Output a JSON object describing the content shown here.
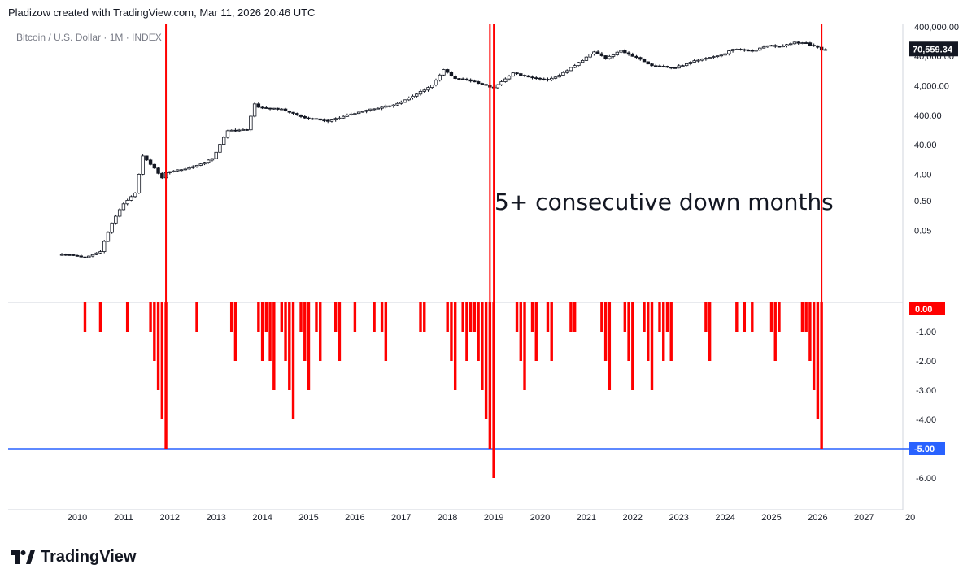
{
  "header": {
    "text": "Pladizow created with TradingView.com, Mar 11, 2026 20:46 UTC"
  },
  "symbol": {
    "label": "Bitcoin / U.S. Dollar · 1M · INDEX"
  },
  "annotation": {
    "text": "5+ consecutive down months"
  },
  "brand": {
    "name": "TradingView"
  },
  "colors": {
    "signal_line": "#ff0000",
    "histogram": "#ff0000",
    "threshold_line": "#2962ff",
    "price_badge": "#131722",
    "zero_badge": "#ff0000",
    "threshold_badge": "#2962ff"
  },
  "chart_data": [
    {
      "type": "candlestick",
      "title": "Bitcoin / U.S. Dollar · 1M · INDEX",
      "scale": "log",
      "y_ticks": [
        "0.05",
        "0.50",
        "4.00",
        "40.00",
        "400.00",
        "4,000.00",
        "40,000.00",
        "400,000.00"
      ],
      "last_price_label": "70,559.34",
      "x_ticks": [
        "2010",
        "2011",
        "2012",
        "2013",
        "2014",
        "2015",
        "2016",
        "2017",
        "2018",
        "2019",
        "2020",
        "2021",
        "2022",
        "2023",
        "2024",
        "2025",
        "2026",
        "2027",
        "20"
      ],
      "close_path": [
        [
          "2009-09",
          0.008
        ],
        [
          "2010-03",
          0.006
        ],
        [
          "2010-07",
          0.01
        ],
        [
          "2010-10",
          0.09
        ],
        [
          "2011-01",
          0.4
        ],
        [
          "2011-04",
          0.9
        ],
        [
          "2011-06",
          17
        ],
        [
          "2011-08",
          9
        ],
        [
          "2011-11",
          3
        ],
        [
          "2011-12",
          4.7
        ],
        [
          "2012-06",
          6.5
        ],
        [
          "2012-12",
          13.5
        ],
        [
          "2013-04",
          120
        ],
        [
          "2013-09",
          130
        ],
        [
          "2013-11",
          1000
        ],
        [
          "2013-12",
          750
        ],
        [
          "2014-06",
          630
        ],
        [
          "2014-12",
          320
        ],
        [
          "2015-06",
          260
        ],
        [
          "2015-12",
          430
        ],
        [
          "2016-06",
          670
        ],
        [
          "2016-12",
          960
        ],
        [
          "2017-06",
          2500
        ],
        [
          "2017-09",
          4300
        ],
        [
          "2017-12",
          14000
        ],
        [
          "2018-03",
          7000
        ],
        [
          "2018-06",
          6400
        ],
        [
          "2018-12",
          3700
        ],
        [
          "2019-01",
          3450
        ],
        [
          "2019-06",
          10800
        ],
        [
          "2019-12",
          7200
        ],
        [
          "2020-03",
          6400
        ],
        [
          "2020-06",
          9100
        ],
        [
          "2020-12",
          29000
        ],
        [
          "2021-03",
          58800
        ],
        [
          "2021-06",
          35000
        ],
        [
          "2021-10",
          61300
        ],
        [
          "2021-12",
          46300
        ],
        [
          "2022-06",
          19800
        ],
        [
          "2022-12",
          16500
        ],
        [
          "2023-06",
          30500
        ],
        [
          "2023-12",
          42300
        ],
        [
          "2024-03",
          71300
        ],
        [
          "2024-08",
          59000
        ],
        [
          "2024-12",
          93400
        ],
        [
          "2025-03",
          82500
        ],
        [
          "2025-07",
          115800
        ],
        [
          "2025-09",
          114000
        ],
        [
          "2025-10",
          109600
        ],
        [
          "2025-12",
          87500
        ],
        [
          "2026-01",
          78600
        ],
        [
          "2026-02",
          66000
        ],
        [
          "2026-03",
          70559
        ]
      ]
    },
    {
      "type": "bar",
      "title": "",
      "ylim": [
        -6.5,
        0
      ],
      "y_ticks": [
        "0.00",
        "-1.00",
        "-2.00",
        "-3.00",
        "-4.00",
        "-5.00",
        "-6.00"
      ],
      "zero_label": "0.00",
      "threshold": -5,
      "threshold_label": "-5.00",
      "series": [
        {
          "values": [
            [
              "2010-03",
              -1
            ],
            [
              "2010-07",
              -1
            ],
            [
              "2011-02",
              -1
            ],
            [
              "2011-08",
              -1
            ],
            [
              "2011-09",
              -2
            ],
            [
              "2011-10",
              -3
            ],
            [
              "2011-11",
              -4
            ],
            [
              "2011-12",
              -5
            ],
            [
              "2012-08",
              -1
            ],
            [
              "2013-05",
              -1
            ],
            [
              "2013-06",
              -2
            ],
            [
              "2013-12",
              -1
            ],
            [
              "2014-01",
              -2
            ],
            [
              "2014-02",
              -1
            ],
            [
              "2014-03",
              -2
            ],
            [
              "2014-04",
              -3
            ],
            [
              "2014-06",
              -1
            ],
            [
              "2014-07",
              -2
            ],
            [
              "2014-08",
              -3
            ],
            [
              "2014-09",
              -4
            ],
            [
              "2014-11",
              -1
            ],
            [
              "2014-12",
              -2
            ],
            [
              "2015-01",
              -3
            ],
            [
              "2015-03",
              -1
            ],
            [
              "2015-04",
              -2
            ],
            [
              "2015-08",
              -1
            ],
            [
              "2015-09",
              -2
            ],
            [
              "2016-01",
              -1
            ],
            [
              "2016-06",
              -1
            ],
            [
              "2016-08",
              -1
            ],
            [
              "2016-09",
              -2
            ],
            [
              "2017-06",
              -1
            ],
            [
              "2017-07",
              -1
            ],
            [
              "2018-01",
              -1
            ],
            [
              "2018-02",
              -2
            ],
            [
              "2018-03",
              -3
            ],
            [
              "2018-05",
              -1
            ],
            [
              "2018-06",
              -2
            ],
            [
              "2018-07",
              -1
            ],
            [
              "2018-08",
              -1
            ],
            [
              "2018-09",
              -2
            ],
            [
              "2018-10",
              -3
            ],
            [
              "2018-11",
              -4
            ],
            [
              "2018-12",
              -5
            ],
            [
              "2019-01",
              -6
            ],
            [
              "2019-07",
              -1
            ],
            [
              "2019-08",
              -2
            ],
            [
              "2019-09",
              -3
            ],
            [
              "2019-11",
              -1
            ],
            [
              "2019-12",
              -2
            ],
            [
              "2020-03",
              -1
            ],
            [
              "2020-04",
              -2
            ],
            [
              "2020-09",
              -1
            ],
            [
              "2020-10",
              -1
            ],
            [
              "2021-05",
              -1
            ],
            [
              "2021-06",
              -2
            ],
            [
              "2021-07",
              -3
            ],
            [
              "2021-11",
              -1
            ],
            [
              "2021-12",
              -2
            ],
            [
              "2022-01",
              -3
            ],
            [
              "2022-04",
              -1
            ],
            [
              "2022-05",
              -2
            ],
            [
              "2022-06",
              -3
            ],
            [
              "2022-08",
              -1
            ],
            [
              "2022-09",
              -2
            ],
            [
              "2022-10",
              -1
            ],
            [
              "2022-11",
              -2
            ],
            [
              "2023-08",
              -1
            ],
            [
              "2023-09",
              -2
            ],
            [
              "2024-04",
              -1
            ],
            [
              "2024-06",
              -1
            ],
            [
              "2024-08",
              -1
            ],
            [
              "2025-01",
              -1
            ],
            [
              "2025-02",
              -2
            ],
            [
              "2025-03",
              -1
            ],
            [
              "2025-09",
              -1
            ],
            [
              "2025-10",
              -1
            ],
            [
              "2025-11",
              -2
            ],
            [
              "2025-12",
              -3
            ],
            [
              "2026-01",
              -4
            ],
            [
              "2026-02",
              -5
            ]
          ]
        }
      ]
    }
  ]
}
